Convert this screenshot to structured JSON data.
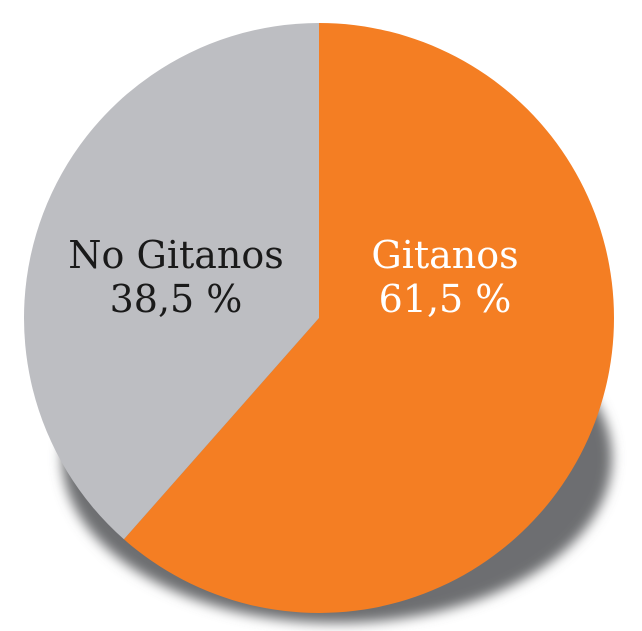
{
  "chart_data": {
    "type": "pie",
    "slices": [
      {
        "label": "Gitanos",
        "value": 61.5,
        "value_text": "61,5 %",
        "color": "#f47e23",
        "text_color": "#ffffff"
      },
      {
        "label": "No Gitanos",
        "value": 38.5,
        "value_text": "38,5 %",
        "color": "#bdbec2",
        "text_color": "#1a1a1a"
      }
    ],
    "start": "top",
    "direction": "clockwise",
    "shadow_color": "#6d6e71"
  }
}
